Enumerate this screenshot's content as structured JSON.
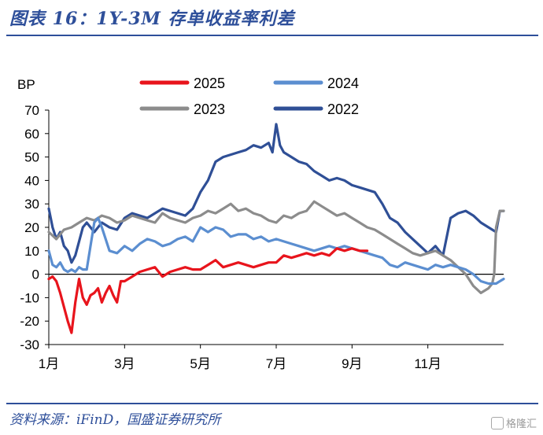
{
  "header": {
    "title": "图表 16：1Y-3M 存单收益率利差"
  },
  "footer": {
    "source": "资料来源：iFinD，国盛证券研究所",
    "watermark": "格隆汇"
  },
  "colors": {
    "s2025": "#e8141c",
    "s2024": "#5b8ed0",
    "s2023": "#8c8c8c",
    "s2022": "#2f4f96",
    "brand": "#2e4f9a"
  },
  "chart_data": {
    "type": "line",
    "ylabel": "BP",
    "ylim": [
      -30,
      70
    ],
    "yticks": [
      70,
      60,
      50,
      40,
      30,
      20,
      10,
      0,
      -10,
      -20,
      -30
    ],
    "xlim": [
      1,
      13
    ],
    "xticks": [
      {
        "v": 1,
        "label": "1月"
      },
      {
        "v": 3,
        "label": "3月"
      },
      {
        "v": 5,
        "label": "5月"
      },
      {
        "v": 7,
        "label": "7月"
      },
      {
        "v": 9,
        "label": "9月"
      },
      {
        "v": 11,
        "label": "11月"
      }
    ],
    "legend": "top",
    "series": [
      {
        "name": "2025",
        "color": "#e8141c",
        "x": [
          1.0,
          1.1,
          1.2,
          1.3,
          1.4,
          1.5,
          1.6,
          1.7,
          1.8,
          1.9,
          2.0,
          2.1,
          2.2,
          2.3,
          2.4,
          2.5,
          2.6,
          2.7,
          2.8,
          2.9,
          3.0,
          3.2,
          3.4,
          3.6,
          3.8,
          4.0,
          4.2,
          4.4,
          4.6,
          4.8,
          5.0,
          5.2,
          5.4,
          5.6,
          5.8,
          6.0,
          6.2,
          6.4,
          6.6,
          6.8,
          7.0,
          7.2,
          7.4,
          7.6,
          7.8,
          8.0,
          8.2,
          8.4,
          8.6,
          8.8,
          9.0,
          9.2,
          9.4
        ],
        "y": [
          -2,
          -1,
          -3,
          -8,
          -14,
          -20,
          -25,
          -12,
          -2,
          -10,
          -13,
          -9,
          -8,
          -6,
          -12,
          -8,
          -5,
          -9,
          -12,
          -3,
          -3,
          -1,
          1,
          2,
          3,
          -1,
          1,
          2,
          3,
          2,
          2,
          4,
          6,
          3,
          4,
          5,
          4,
          3,
          4,
          5,
          5,
          8,
          7,
          8,
          9,
          8,
          9,
          8,
          11,
          10,
          11,
          10,
          10
        ]
      },
      {
        "name": "2024",
        "color": "#5b8ed0",
        "x": [
          1.0,
          1.1,
          1.2,
          1.3,
          1.4,
          1.5,
          1.6,
          1.7,
          1.8,
          1.9,
          2.0,
          2.1,
          2.2,
          2.3,
          2.4,
          2.6,
          2.8,
          3.0,
          3.2,
          3.4,
          3.6,
          3.8,
          4.0,
          4.2,
          4.4,
          4.6,
          4.8,
          5.0,
          5.2,
          5.4,
          5.6,
          5.8,
          6.0,
          6.2,
          6.4,
          6.6,
          6.8,
          7.0,
          7.2,
          7.4,
          7.6,
          7.8,
          8.0,
          8.2,
          8.4,
          8.6,
          8.8,
          9.0,
          9.2,
          9.4,
          9.6,
          9.8,
          10.0,
          10.2,
          10.4,
          10.6,
          10.8,
          11.0,
          11.2,
          11.4,
          11.6,
          11.8,
          12.0,
          12.2,
          12.4,
          12.6,
          12.8,
          13.0
        ],
        "y": [
          10,
          4,
          3,
          5,
          2,
          1,
          2,
          1,
          3,
          2,
          2,
          12,
          22,
          24,
          20,
          10,
          9,
          12,
          10,
          13,
          15,
          14,
          12,
          13,
          15,
          16,
          14,
          20,
          18,
          20,
          19,
          16,
          17,
          17,
          15,
          16,
          14,
          15,
          14,
          13,
          12,
          11,
          10,
          11,
          12,
          11,
          12,
          11,
          10,
          9,
          8,
          7,
          4,
          3,
          5,
          4,
          3,
          2,
          4,
          3,
          4,
          3,
          2,
          0,
          -3,
          -4,
          -4,
          -2
        ]
      },
      {
        "name": "2023",
        "color": "#8c8c8c",
        "x": [
          1.0,
          1.2,
          1.4,
          1.6,
          1.8,
          2.0,
          2.2,
          2.4,
          2.6,
          2.8,
          3.0,
          3.2,
          3.4,
          3.6,
          3.8,
          4.0,
          4.2,
          4.4,
          4.6,
          4.8,
          5.0,
          5.2,
          5.4,
          5.6,
          5.8,
          6.0,
          6.2,
          6.4,
          6.6,
          6.8,
          7.0,
          7.2,
          7.4,
          7.6,
          7.8,
          8.0,
          8.2,
          8.4,
          8.6,
          8.8,
          9.0,
          9.2,
          9.4,
          9.6,
          9.8,
          10.0,
          10.2,
          10.4,
          10.6,
          10.8,
          11.0,
          11.2,
          11.4,
          11.6,
          11.8,
          12.0,
          12.2,
          12.4,
          12.6,
          12.7,
          12.75,
          12.8,
          12.9,
          13.0
        ],
        "y": [
          18,
          15,
          19,
          20,
          22,
          24,
          23,
          25,
          24,
          22,
          23,
          25,
          24,
          23,
          22,
          26,
          24,
          23,
          22,
          24,
          25,
          27,
          26,
          28,
          30,
          27,
          28,
          26,
          25,
          23,
          22,
          25,
          24,
          26,
          27,
          31,
          29,
          27,
          25,
          26,
          24,
          22,
          20,
          19,
          17,
          15,
          13,
          11,
          9,
          8,
          9,
          10,
          8,
          6,
          3,
          0,
          -5,
          -8,
          -6,
          -4,
          0,
          20,
          27,
          27
        ]
      },
      {
        "name": "2022",
        "color": "#2f4f96",
        "x": [
          1.0,
          1.1,
          1.2,
          1.3,
          1.4,
          1.5,
          1.6,
          1.7,
          1.8,
          1.9,
          2.0,
          2.1,
          2.2,
          2.4,
          2.6,
          2.8,
          3.0,
          3.2,
          3.4,
          3.6,
          3.8,
          4.0,
          4.2,
          4.4,
          4.6,
          4.8,
          5.0,
          5.2,
          5.4,
          5.6,
          5.8,
          6.0,
          6.2,
          6.4,
          6.6,
          6.8,
          6.9,
          7.0,
          7.1,
          7.2,
          7.4,
          7.6,
          7.8,
          8.0,
          8.2,
          8.4,
          8.6,
          8.8,
          9.0,
          9.2,
          9.4,
          9.6,
          9.8,
          10.0,
          10.2,
          10.4,
          10.6,
          10.8,
          11.0,
          11.2,
          11.4,
          11.6,
          11.8,
          12.0,
          12.2,
          12.4,
          12.6,
          12.8,
          12.9,
          13.0
        ],
        "y": [
          28,
          20,
          15,
          18,
          12,
          10,
          5,
          8,
          14,
          20,
          22,
          20,
          18,
          22,
          20,
          19,
          24,
          26,
          25,
          24,
          26,
          28,
          27,
          26,
          25,
          28,
          35,
          40,
          48,
          50,
          51,
          52,
          53,
          55,
          54,
          56,
          52,
          64,
          55,
          52,
          50,
          48,
          47,
          44,
          42,
          40,
          41,
          40,
          38,
          37,
          36,
          35,
          30,
          24,
          22,
          18,
          15,
          12,
          9,
          12,
          8,
          24,
          26,
          27,
          25,
          22,
          20,
          18,
          27,
          27
        ]
      }
    ]
  }
}
